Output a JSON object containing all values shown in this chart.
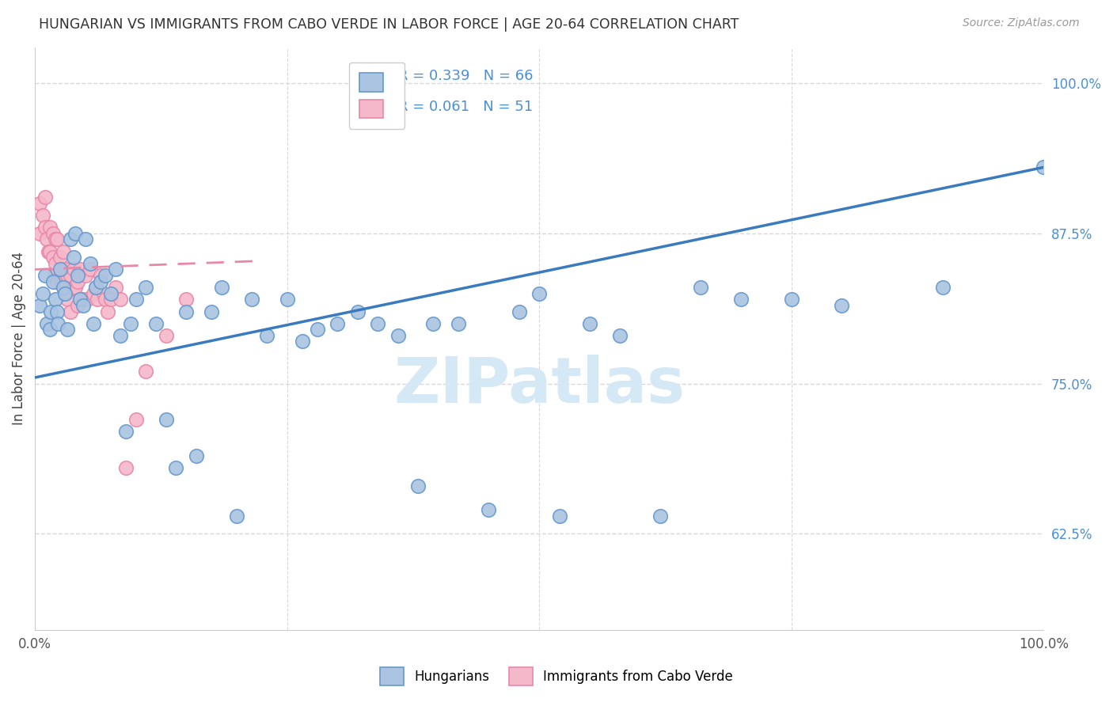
{
  "title": "HUNGARIAN VS IMMIGRANTS FROM CABO VERDE IN LABOR FORCE | AGE 20-64 CORRELATION CHART",
  "source": "Source: ZipAtlas.com",
  "ylabel": "In Labor Force | Age 20-64",
  "ytick_values": [
    0.625,
    0.75,
    0.875,
    1.0
  ],
  "ytick_labels": [
    "62.5%",
    "75.0%",
    "87.5%",
    "100.0%"
  ],
  "xlim": [
    0.0,
    1.0
  ],
  "ylim": [
    0.545,
    1.03
  ],
  "blue_fill": "#aac4e2",
  "blue_edge": "#6699cc",
  "pink_fill": "#f5b8ca",
  "pink_edge": "#e888a8",
  "blue_line_color": "#3a7abf",
  "pink_line_color": "#e888a8",
  "R_blue": 0.339,
  "N_blue": 66,
  "R_pink": 0.061,
  "N_pink": 51,
  "legend_label_blue": "Hungarians",
  "legend_label_pink": "Immigrants from Cabo Verde",
  "grid_color": "#d8d8d8",
  "bg_color": "#ffffff",
  "right_tick_color": "#4a90d9",
  "title_color": "#333333",
  "source_color": "#999999",
  "watermark_color": "#d5e8f5",
  "blue_x": [
    0.005,
    0.008,
    0.01,
    0.012,
    0.015,
    0.016,
    0.018,
    0.02,
    0.022,
    0.023,
    0.025,
    0.028,
    0.03,
    0.032,
    0.035,
    0.038,
    0.04,
    0.042,
    0.045,
    0.048,
    0.05,
    0.055,
    0.058,
    0.06,
    0.065,
    0.07,
    0.075,
    0.08,
    0.085,
    0.09,
    0.095,
    0.1,
    0.11,
    0.12,
    0.13,
    0.14,
    0.15,
    0.16,
    0.175,
    0.185,
    0.2,
    0.215,
    0.23,
    0.25,
    0.265,
    0.28,
    0.3,
    0.32,
    0.34,
    0.36,
    0.38,
    0.395,
    0.42,
    0.45,
    0.48,
    0.5,
    0.52,
    0.55,
    0.58,
    0.62,
    0.66,
    0.7,
    0.75,
    0.8,
    0.9,
    1.0
  ],
  "blue_y": [
    0.815,
    0.825,
    0.84,
    0.8,
    0.795,
    0.81,
    0.835,
    0.82,
    0.81,
    0.8,
    0.845,
    0.83,
    0.825,
    0.795,
    0.87,
    0.855,
    0.875,
    0.84,
    0.82,
    0.815,
    0.87,
    0.85,
    0.8,
    0.83,
    0.835,
    0.84,
    0.825,
    0.845,
    0.79,
    0.71,
    0.8,
    0.82,
    0.83,
    0.8,
    0.72,
    0.68,
    0.81,
    0.69,
    0.81,
    0.83,
    0.64,
    0.82,
    0.79,
    0.82,
    0.785,
    0.795,
    0.8,
    0.81,
    0.8,
    0.79,
    0.665,
    0.8,
    0.8,
    0.645,
    0.81,
    0.825,
    0.64,
    0.8,
    0.79,
    0.64,
    0.83,
    0.82,
    0.82,
    0.815,
    0.83,
    0.93
  ],
  "pink_x": [
    0.005,
    0.005,
    0.008,
    0.01,
    0.01,
    0.012,
    0.013,
    0.015,
    0.015,
    0.018,
    0.018,
    0.02,
    0.02,
    0.02,
    0.022,
    0.022,
    0.025,
    0.025,
    0.028,
    0.028,
    0.03,
    0.03,
    0.032,
    0.032,
    0.035,
    0.035,
    0.038,
    0.038,
    0.04,
    0.042,
    0.042,
    0.045,
    0.048,
    0.05,
    0.052,
    0.055,
    0.058,
    0.06,
    0.062,
    0.065,
    0.068,
    0.07,
    0.072,
    0.075,
    0.08,
    0.085,
    0.09,
    0.1,
    0.11,
    0.13,
    0.15
  ],
  "pink_y": [
    0.9,
    0.875,
    0.89,
    0.905,
    0.88,
    0.87,
    0.86,
    0.88,
    0.86,
    0.875,
    0.855,
    0.87,
    0.85,
    0.84,
    0.87,
    0.835,
    0.855,
    0.84,
    0.86,
    0.83,
    0.845,
    0.825,
    0.84,
    0.82,
    0.84,
    0.81,
    0.845,
    0.83,
    0.83,
    0.835,
    0.815,
    0.845,
    0.82,
    0.84,
    0.82,
    0.845,
    0.825,
    0.83,
    0.82,
    0.84,
    0.825,
    0.82,
    0.81,
    0.82,
    0.83,
    0.82,
    0.68,
    0.72,
    0.76,
    0.79,
    0.82
  ],
  "blue_line_x0": 0.0,
  "blue_line_y0": 0.755,
  "blue_line_x1": 1.0,
  "blue_line_y1": 0.93,
  "pink_line_x0": 0.0,
  "pink_line_y0": 0.845,
  "pink_line_x1": 0.22,
  "pink_line_y1": 0.852
}
